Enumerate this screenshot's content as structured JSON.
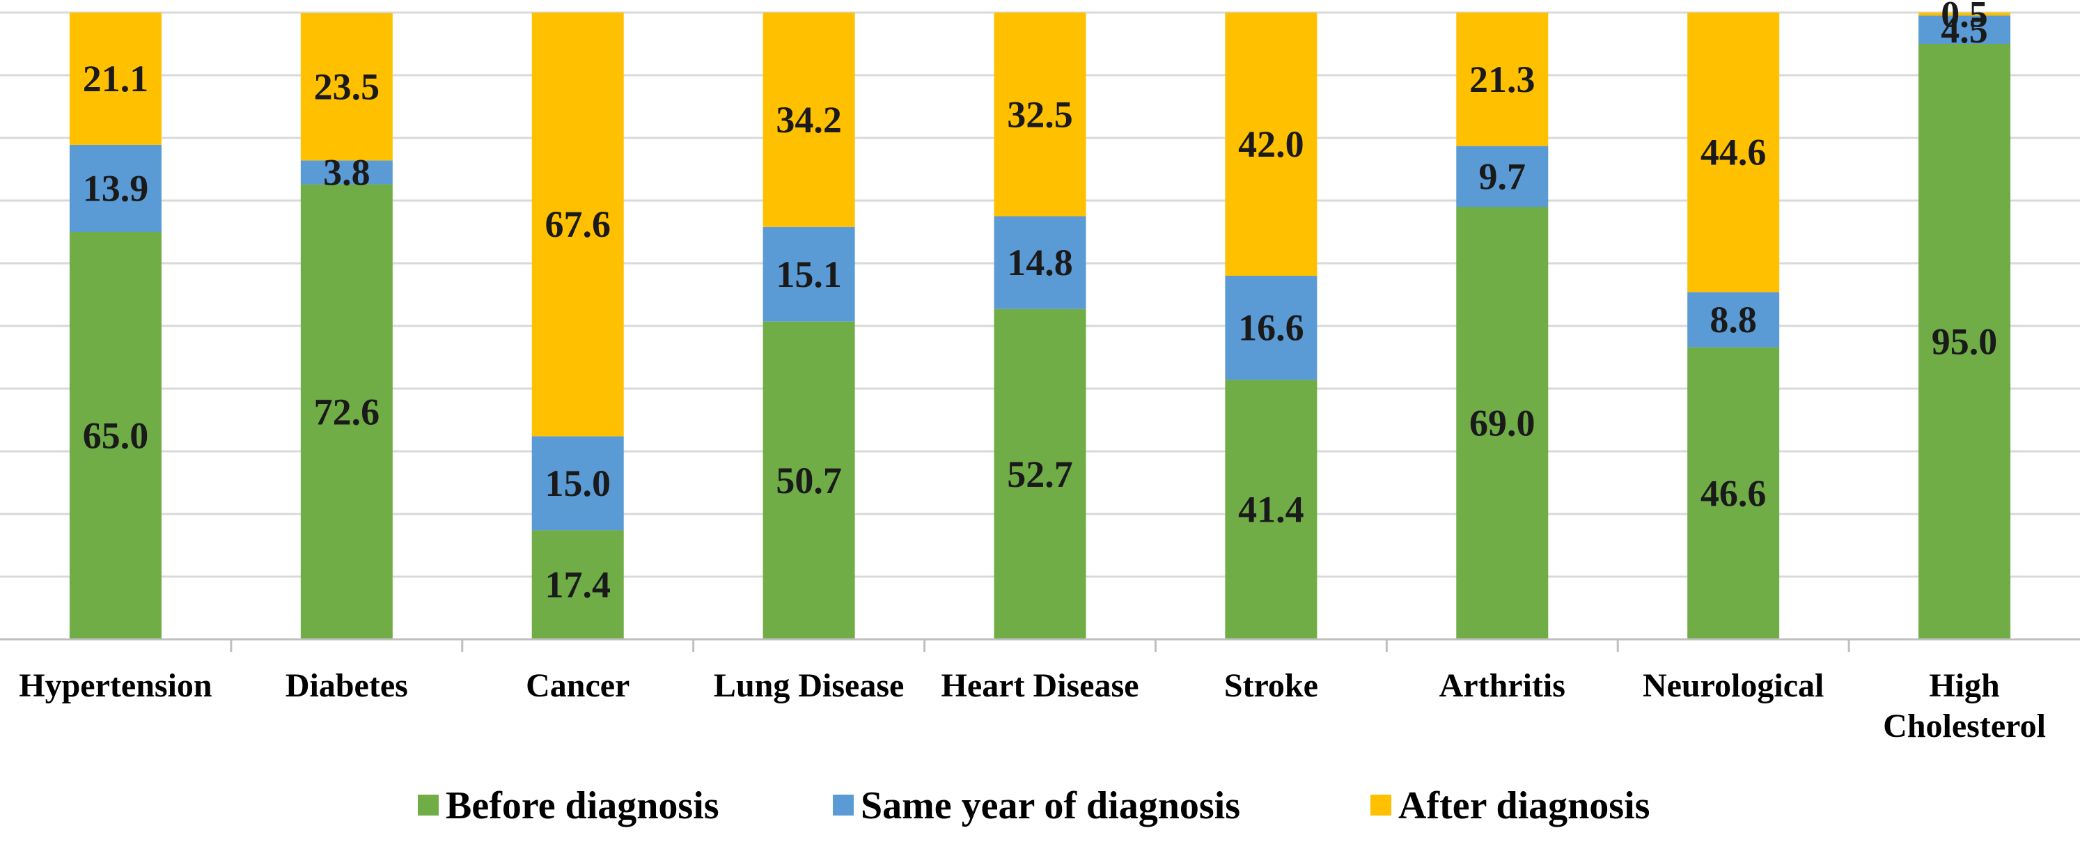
{
  "chart_data": {
    "type": "bar",
    "stacked": true,
    "title": "",
    "xlabel": "",
    "ylabel": "",
    "ylim": [
      0,
      100
    ],
    "grid": true,
    "legend_position": "bottom",
    "categories": [
      [
        "Hypertension"
      ],
      [
        "Diabetes"
      ],
      [
        "Cancer"
      ],
      [
        "Lung Disease"
      ],
      [
        "Heart Disease"
      ],
      [
        "Stroke"
      ],
      [
        "Arthritis"
      ],
      [
        "Neurological"
      ],
      [
        "High",
        "Cholesterol"
      ]
    ],
    "series": [
      {
        "name": "Before diagnosis",
        "color": "#70AD47",
        "values": [
          65.0,
          72.6,
          17.4,
          50.7,
          52.7,
          41.4,
          69.0,
          46.6,
          95.0
        ],
        "labels": [
          "65.0",
          "72.6",
          "17.4",
          "50.7",
          "52.7",
          "41.4",
          "69.0",
          "46.6",
          "95.0"
        ]
      },
      {
        "name": "Same year of diagnosis",
        "color": "#5B9BD5",
        "values": [
          13.9,
          3.8,
          15.0,
          15.1,
          14.8,
          16.6,
          9.7,
          8.8,
          4.5
        ],
        "labels": [
          "13.9",
          "3.8",
          "15.0",
          "15.1",
          "14.8",
          "16.6",
          "9.7",
          "8.8",
          "4.5"
        ]
      },
      {
        "name": "After diagnosis",
        "color": "#FFC000",
        "values": [
          21.1,
          23.5,
          67.6,
          34.2,
          32.5,
          42.0,
          21.3,
          44.6,
          0.5
        ],
        "labels": [
          "21.1",
          "23.5",
          "67.6",
          "34.2",
          "32.5",
          "42.0",
          "21.3",
          "44.6",
          "0.5"
        ]
      }
    ],
    "colors": {
      "gridline": "#D9D9D9",
      "axis": "#BFBFBF"
    }
  }
}
